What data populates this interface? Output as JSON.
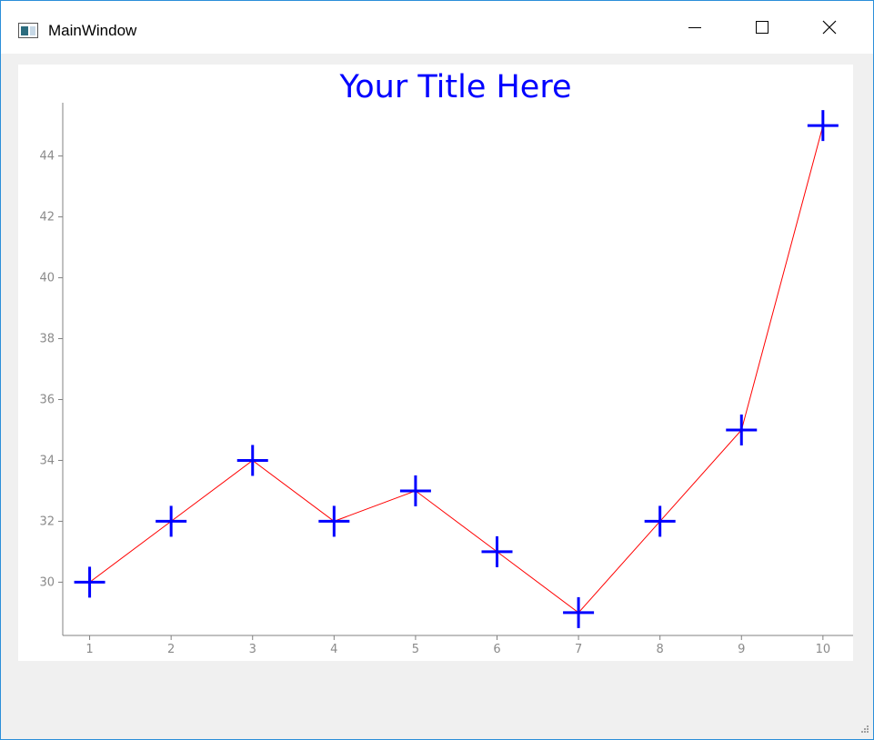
{
  "window": {
    "title": "MainWindow",
    "controls": {
      "minimize": "minimize-icon",
      "maximize": "maximize-icon",
      "close": "close-icon"
    }
  },
  "colors": {
    "title": "#0000ff",
    "line": "#ff0000",
    "marker": "#0000ff",
    "axis": "#808080",
    "tick_label": "#8a8a8a",
    "window_border": "#2b8fd9"
  },
  "chart_data": {
    "type": "line",
    "title": "Your Title Here",
    "xlabel": "",
    "ylabel": "",
    "x": [
      1,
      2,
      3,
      4,
      5,
      6,
      7,
      8,
      9,
      10
    ],
    "series": [
      {
        "values": [
          30,
          32,
          34,
          32,
          33,
          31,
          29,
          32,
          35,
          45
        ],
        "marker": "plus"
      }
    ],
    "xlim": [
      0.67,
      10.37
    ],
    "ylim": [
      28.25,
      45.75
    ],
    "xticks": [
      1,
      2,
      3,
      4,
      5,
      6,
      7,
      8,
      9,
      10
    ],
    "yticks": [
      30,
      32,
      34,
      36,
      38,
      40,
      42,
      44
    ],
    "grid": false,
    "legend": "none"
  }
}
